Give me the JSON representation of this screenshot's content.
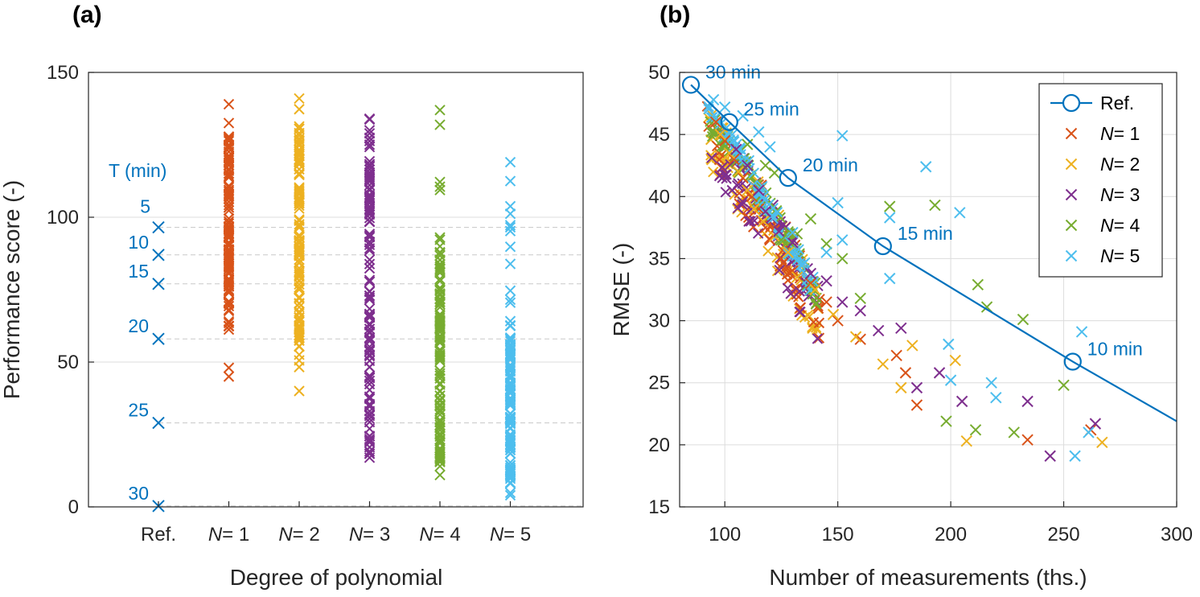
{
  "colors": {
    "ref": "#0072BD",
    "N1": "#D95319",
    "N2": "#EDB120",
    "N3": "#7E2F8E",
    "N4": "#77AC30",
    "N5": "#4DBEEE",
    "grid": "#dcdcdc",
    "axis": "#262626"
  },
  "chart_data": [
    {
      "panel": "(a)",
      "type": "scatter",
      "marker": "x",
      "xlabel": "Degree of polynomial",
      "ylabel": "Performance score (-)",
      "ylim": [
        0,
        150
      ],
      "yticks": [
        0,
        50,
        100,
        150
      ],
      "categories": [
        {
          "prefix": "Ref.",
          "value": ""
        },
        {
          "prefix": "N",
          "value": "= 1"
        },
        {
          "prefix": "N",
          "value": "= 2"
        },
        {
          "prefix": "N",
          "value": "= 3"
        },
        {
          "prefix": "N",
          "value": "= 4"
        },
        {
          "prefix": "N",
          "value": "= 5"
        }
      ],
      "ref_header": "T (min)",
      "ref_points": [
        {
          "label": "5",
          "y": 96.5
        },
        {
          "label": "10",
          "y": 87
        },
        {
          "label": "15",
          "y": 77
        },
        {
          "label": "20",
          "y": 58
        },
        {
          "label": "25",
          "y": 29
        },
        {
          "label": "30",
          "y": 0.3
        }
      ],
      "ranges": [
        {
          "series": "N1",
          "min": 45,
          "max": 139,
          "dense": [
            62,
            128
          ]
        },
        {
          "series": "N2",
          "min": 40,
          "max": 141,
          "dense": [
            55,
            132
          ]
        },
        {
          "series": "N3",
          "min": 17,
          "max": 134,
          "dense": [
            20,
            130
          ]
        },
        {
          "series": "N4",
          "min": 11,
          "max": 137,
          "dense": [
            14,
            90
          ]
        },
        {
          "series": "N5",
          "min": 4,
          "max": 119,
          "dense": [
            8,
            60
          ]
        }
      ],
      "grid": true
    },
    {
      "panel": "(b)",
      "type": "scatter",
      "xlabel": "Number of measurements (ths.)",
      "ylabel": "RMSE (-)",
      "xlim": [
        80,
        300
      ],
      "ylim": [
        15,
        50
      ],
      "xticks": [
        100,
        150,
        200,
        250,
        300
      ],
      "yticks": [
        15,
        20,
        25,
        30,
        35,
        40,
        45,
        50
      ],
      "legend": {
        "placement": "top-right",
        "entries": [
          {
            "series": "ref",
            "prefix": "Ref.",
            "value": ""
          },
          {
            "series": "N1",
            "prefix": "N",
            "value": "= 1"
          },
          {
            "series": "N2",
            "prefix": "N",
            "value": "= 2"
          },
          {
            "series": "N3",
            "prefix": "N",
            "value": "= 3"
          },
          {
            "series": "N4",
            "prefix": "N",
            "value": "= 4"
          },
          {
            "series": "N5",
            "prefix": "N",
            "value": "= 5"
          }
        ]
      },
      "ref_line": [
        [
          85,
          49
        ],
        [
          102,
          46
        ],
        [
          128,
          41.5
        ],
        [
          170,
          36
        ],
        [
          254,
          26.7
        ],
        [
          300,
          21.9
        ]
      ],
      "ref_markers": [
        [
          85,
          49
        ],
        [
          102,
          46
        ],
        [
          128,
          41.5
        ],
        [
          170,
          36
        ],
        [
          254,
          26.7
        ]
      ],
      "annotations": [
        {
          "text": "30 min",
          "x": 85,
          "y": 49
        },
        {
          "text": "25 min",
          "x": 102,
          "y": 46
        },
        {
          "text": "20 min",
          "x": 128,
          "y": 41.5
        },
        {
          "text": "15 min",
          "x": 170,
          "y": 36
        },
        {
          "text": "10 min",
          "x": 254,
          "y": 26.7
        }
      ],
      "series": [
        {
          "name": "N1",
          "points": [
            [
              234,
              20.4
            ],
            [
              262,
              21.2
            ],
            [
              185,
              23.2
            ],
            [
              180,
              25.8
            ],
            [
              176,
              27.2
            ],
            [
              160,
              28.5
            ],
            [
              150,
              30
            ],
            [
              145,
              31.5
            ],
            [
              138,
              33
            ],
            [
              130,
              34
            ],
            [
              125,
              35
            ],
            [
              120,
              36.5
            ],
            [
              118,
              37.5
            ],
            [
              115,
              39
            ],
            [
              112,
              40
            ],
            [
              108,
              41.5
            ],
            [
              104,
              43
            ],
            [
              100,
              44.5
            ],
            [
              96,
              46
            ]
          ]
        },
        {
          "name": "N2",
          "points": [
            [
              267,
              20.2
            ],
            [
              207,
              20.3
            ],
            [
              202,
              26.8
            ],
            [
              183,
              28
            ],
            [
              178,
              24.6
            ],
            [
              170,
              26.5
            ],
            [
              158,
              28.7
            ],
            [
              148,
              30.5
            ],
            [
              140,
              32.5
            ],
            [
              132,
              33.5
            ],
            [
              128,
              35.5
            ],
            [
              122,
              36.8
            ],
            [
              117,
              38
            ],
            [
              113,
              39
            ],
            [
              110,
              40.5
            ],
            [
              106,
              42
            ],
            [
              102,
              43.5
            ],
            [
              98,
              45
            ]
          ]
        },
        {
          "name": "N3",
          "points": [
            [
              244,
              19.1
            ],
            [
              264,
              21.7
            ],
            [
              234,
              23.5
            ],
            [
              205,
              23.5
            ],
            [
              195,
              25.8
            ],
            [
              185,
              24.6
            ],
            [
              178,
              29.4
            ],
            [
              168,
              29.2
            ],
            [
              160,
              30.8
            ],
            [
              152,
              31.5
            ],
            [
              145,
              33.2
            ],
            [
              138,
              33.8
            ],
            [
              130,
              36.3
            ],
            [
              124,
              37.2
            ],
            [
              118,
              38.8
            ],
            [
              115,
              40.5
            ],
            [
              110,
              42.5
            ],
            [
              105,
              43.8
            ]
          ]
        },
        {
          "name": "N4",
          "points": [
            [
              250,
              24.8
            ],
            [
              228,
              21
            ],
            [
              211,
              21.2
            ],
            [
              198,
              21.9
            ],
            [
              232,
              30.1
            ],
            [
              216,
              31.1
            ],
            [
              212,
              32.9
            ],
            [
              193,
              39.3
            ],
            [
              173,
              39.2
            ],
            [
              160,
              31.8
            ],
            [
              152,
              35
            ],
            [
              145,
              36.2
            ],
            [
              138,
              38.2
            ],
            [
              132,
              37
            ],
            [
              125,
              36.5
            ],
            [
              122,
              41.9
            ],
            [
              118,
              42.5
            ],
            [
              110,
              44.2
            ]
          ]
        },
        {
          "name": "N5",
          "points": [
            [
              255,
              19.1
            ],
            [
              258,
              29.1
            ],
            [
              261,
              21
            ],
            [
              220,
              23.8
            ],
            [
              218,
              25
            ],
            [
              199,
              28.1
            ],
            [
              200,
              25.2
            ],
            [
              204,
              38.7
            ],
            [
              189,
              42.4
            ],
            [
              173,
              38.3
            ],
            [
              173,
              33.4
            ],
            [
              152,
              44.9
            ],
            [
              150,
              39.5
            ],
            [
              152,
              36.5
            ],
            [
              145,
              35.5
            ],
            [
              130,
              37.1
            ],
            [
              120,
              44
            ],
            [
              115,
              45.2
            ],
            [
              108,
              46.5
            ],
            [
              100,
              47.2
            ],
            [
              95,
              47.8
            ]
          ]
        }
      ],
      "grid": true
    }
  ]
}
